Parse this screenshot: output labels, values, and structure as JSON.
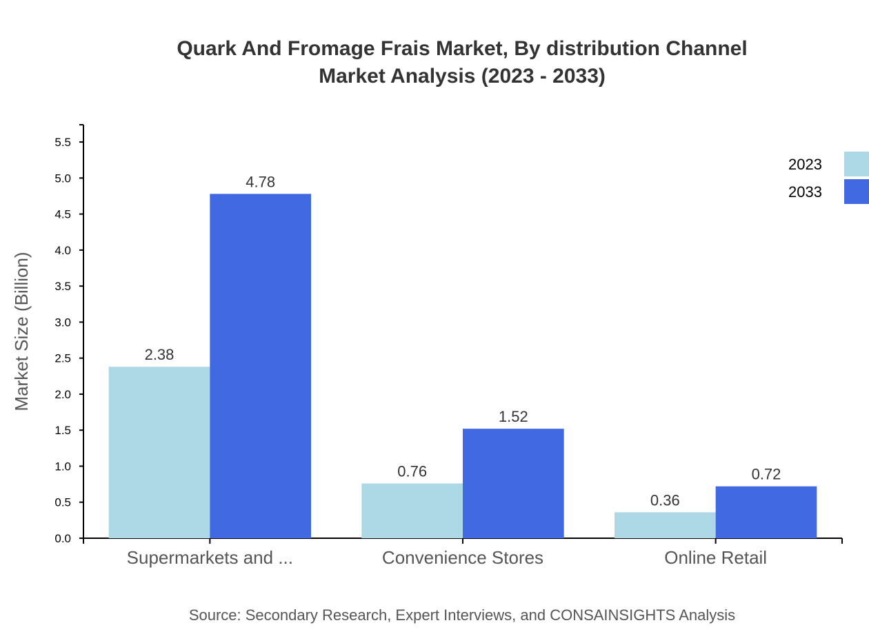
{
  "chart_data": {
    "type": "bar",
    "title": [
      "Quark And Fromage Frais Market, By distribution Channel",
      "Market Analysis (2023 - 2033)"
    ],
    "xlabel": "",
    "ylabel": "Market Size (Billion)",
    "categories": [
      "Supermarkets and ...",
      "Convenience Stores",
      "Online Retail"
    ],
    "series": [
      {
        "name": "2023",
        "values": [
          2.38,
          0.76,
          0.36
        ],
        "color": "#add8e6"
      },
      {
        "name": "2033",
        "values": [
          4.78,
          1.52,
          0.72
        ],
        "color": "#4169e1"
      }
    ],
    "ylim": [
      0,
      5.74
    ],
    "yticks": [
      "0.0",
      "0.5",
      "1.0",
      "1.5",
      "2.0",
      "2.5",
      "3.0",
      "3.5",
      "4.0",
      "4.5",
      "5.0",
      "5.5"
    ],
    "grid": false,
    "legend": "top-right",
    "source": "Source: Secondary Research, Expert Interviews, and CONSAINSIGHTS Analysis"
  }
}
